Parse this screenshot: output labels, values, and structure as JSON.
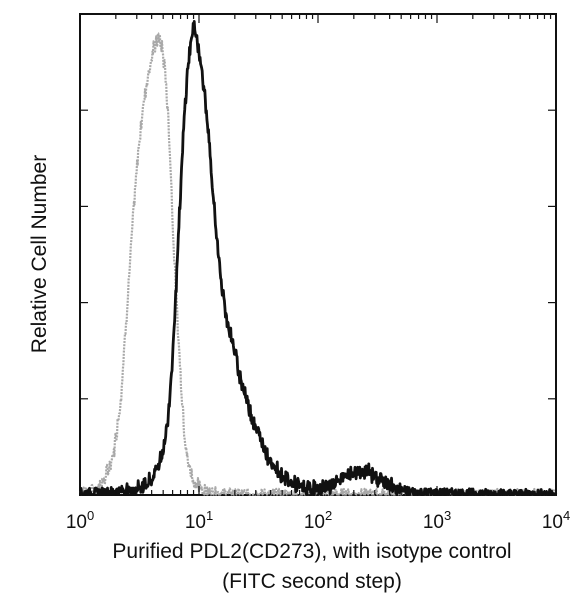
{
  "chart_data": {
    "type": "line",
    "title": "",
    "xlabel": "Purified PDL2(CD273), with isotype control",
    "xlabel_line2": "(FITC second step)",
    "ylabel": "Relative Cell Number",
    "x_scale": "log",
    "xlim": [
      1,
      10000
    ],
    "ylim": [
      0,
      1.0
    ],
    "grid": false,
    "legend": "none",
    "x_ticks": [
      {
        "base": "10",
        "exp": "0"
      },
      {
        "base": "10",
        "exp": "1"
      },
      {
        "base": "10",
        "exp": "2"
      },
      {
        "base": "10",
        "exp": "3"
      },
      {
        "base": "10",
        "exp": "4"
      }
    ],
    "series": [
      {
        "color": "#a8a8a8",
        "style": "isotype-control",
        "x": [
          1,
          1.3,
          1.6,
          1.9,
          2.2,
          2.5,
          2.8,
          3.1,
          3.4,
          3.7,
          4.0,
          4.3,
          4.6,
          4.9,
          5.2,
          5.5,
          5.8,
          6.1,
          6.5,
          7.0,
          7.5,
          8.0,
          9.0,
          10,
          12,
          15,
          20,
          30,
          50,
          100,
          1000,
          10000
        ],
        "y": [
          0.005,
          0.01,
          0.03,
          0.08,
          0.2,
          0.4,
          0.58,
          0.72,
          0.81,
          0.87,
          0.91,
          0.94,
          0.95,
          0.93,
          0.88,
          0.79,
          0.67,
          0.53,
          0.39,
          0.25,
          0.14,
          0.07,
          0.03,
          0.015,
          0.006,
          0.003,
          0.002,
          0.002,
          0.001,
          0.001,
          0.001,
          0.001
        ]
      },
      {
        "color": "#111111",
        "style": "PDL2-stained",
        "x": [
          1,
          1.5,
          2,
          3,
          4,
          5,
          5.5,
          6,
          6.5,
          7,
          7.5,
          8,
          8.5,
          9,
          9.5,
          10,
          11,
          12,
          13,
          14,
          15,
          17,
          19,
          22,
          25,
          30,
          35,
          40,
          50,
          60,
          80,
          100,
          130,
          160,
          200,
          250,
          300,
          400,
          500,
          700,
          1000,
          2000,
          5000,
          10000
        ],
        "y": [
          0.004,
          0.005,
          0.008,
          0.012,
          0.03,
          0.09,
          0.16,
          0.29,
          0.46,
          0.63,
          0.78,
          0.88,
          0.94,
          0.97,
          0.96,
          0.92,
          0.85,
          0.75,
          0.63,
          0.55,
          0.46,
          0.37,
          0.32,
          0.25,
          0.2,
          0.14,
          0.1,
          0.07,
          0.04,
          0.025,
          0.012,
          0.012,
          0.02,
          0.035,
          0.045,
          0.05,
          0.04,
          0.02,
          0.01,
          0.005,
          0.004,
          0.003,
          0.002,
          0.002
        ]
      }
    ]
  }
}
